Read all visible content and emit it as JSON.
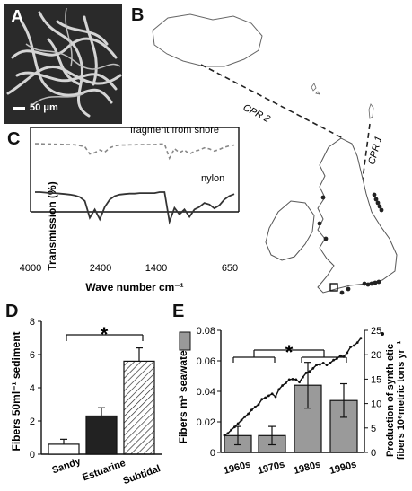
{
  "panels": {
    "a": {
      "label": "A",
      "scale_bar": "50 μm",
      "image_kind": "micrograph of tangled fibers"
    },
    "b": {
      "label": "B",
      "route_1": "CPR 1",
      "route_2": "CPR 2"
    },
    "c": {
      "label": "C",
      "ylabel": "Transmission (%)",
      "xlabel": "Wave number cm⁻¹",
      "xticks": [
        "4000",
        "2400",
        "1400",
        "650"
      ],
      "legend_top": "fragment from shore",
      "legend_bottom": "nylon"
    },
    "d": {
      "label": "D",
      "ylabel": "Fibers 50ml⁻¹ sediment",
      "significance": "*"
    },
    "e": {
      "label": "E",
      "ylabel_left": "Fibers m³ seawater",
      "ylabel_right_line1": "Production of synth etic",
      "ylabel_right_line2": "fibers 10⁶metric tons yr⁻¹",
      "significance": "*"
    }
  },
  "chart_data": [
    {
      "id": "D",
      "type": "bar",
      "categories": [
        "Sandy",
        "Estuarine",
        "Subtidal"
      ],
      "values": [
        0.6,
        2.3,
        5.6
      ],
      "errors": [
        0.3,
        0.5,
        0.8
      ],
      "fills": [
        "#ffffff",
        "#222222",
        "hatched"
      ],
      "ylabel": "Fibers 50ml⁻¹ sediment",
      "ylim": [
        0,
        8
      ],
      "yticks": [
        0,
        2,
        4,
        6,
        8
      ]
    },
    {
      "id": "E",
      "type": "bar+line",
      "categories": [
        "1960s",
        "1970s",
        "1980s",
        "1990s"
      ],
      "values": [
        0.011,
        0.011,
        0.044,
        0.034
      ],
      "errors": [
        0.006,
        0.006,
        0.015,
        0.011
      ],
      "ylabel": "Fibers m³ seawater",
      "ylim": [
        0,
        0.08
      ],
      "yticks": [
        0,
        0.02,
        0.04,
        0.06,
        0.08
      ],
      "line": {
        "axis": "right",
        "ylim": [
          0,
          25
        ],
        "yticks": [
          0,
          5,
          10,
          15,
          20,
          25
        ],
        "x": [
          1960,
          1961,
          1962,
          1963,
          1964,
          1965,
          1966,
          1967,
          1968,
          1969,
          1970,
          1971,
          1972,
          1973,
          1974,
          1975,
          1976,
          1977,
          1978,
          1979,
          1980,
          1981,
          1982,
          1983,
          1984,
          1985,
          1986,
          1987,
          1988,
          1989,
          1990,
          1991,
          1992,
          1993,
          1994,
          1995,
          1996,
          1997,
          1998,
          1999,
          2000
        ],
        "values": [
          3.5,
          3.9,
          4.6,
          5.2,
          5.9,
          6.6,
          7.3,
          7.9,
          8.7,
          9.3,
          9.8,
          10.9,
          11.2,
          11.6,
          12.0,
          11.4,
          12.9,
          13.7,
          14.2,
          14.9,
          15.0,
          14.9,
          14.4,
          15.4,
          16.3,
          16.6,
          17.2,
          17.9,
          18.0,
          18.3,
          17.9,
          18.3,
          18.9,
          19.2,
          19.8,
          19.6,
          20.4,
          21.6,
          21.9,
          22.5,
          23.4
        ]
      }
    },
    {
      "id": "C",
      "type": "line",
      "xticks": [
        "4000",
        "2400",
        "1400",
        "650"
      ],
      "series": [
        {
          "name": "fragment from shore",
          "style": "dashed",
          "values": [
            0.93,
            0.93,
            0.92,
            0.92,
            0.91,
            0.91,
            0.9,
            0.9,
            0.89,
            0.86,
            0.82,
            0.55,
            0.6,
            0.7,
            0.62,
            0.78,
            0.85,
            0.88,
            0.88,
            0.89,
            0.89,
            0.9,
            0.9,
            0.9,
            0.9,
            0.92,
            0.92,
            0.4,
            0.75,
            0.6,
            0.7,
            0.55,
            0.65,
            0.7,
            0.78,
            0.74,
            0.66,
            0.72,
            0.8,
            0.85,
            0.88
          ]
        },
        {
          "name": "nylon",
          "style": "solid",
          "values": [
            0.6,
            0.6,
            0.59,
            0.58,
            0.58,
            0.57,
            0.56,
            0.55,
            0.53,
            0.5,
            0.42,
            0.08,
            0.25,
            0.05,
            0.3,
            0.45,
            0.52,
            0.55,
            0.56,
            0.57,
            0.57,
            0.58,
            0.58,
            0.58,
            0.58,
            0.6,
            0.6,
            0.0,
            0.28,
            0.15,
            0.25,
            0.1,
            0.25,
            0.3,
            0.38,
            0.35,
            0.27,
            0.33,
            0.45,
            0.52,
            0.56
          ]
        }
      ]
    }
  ]
}
